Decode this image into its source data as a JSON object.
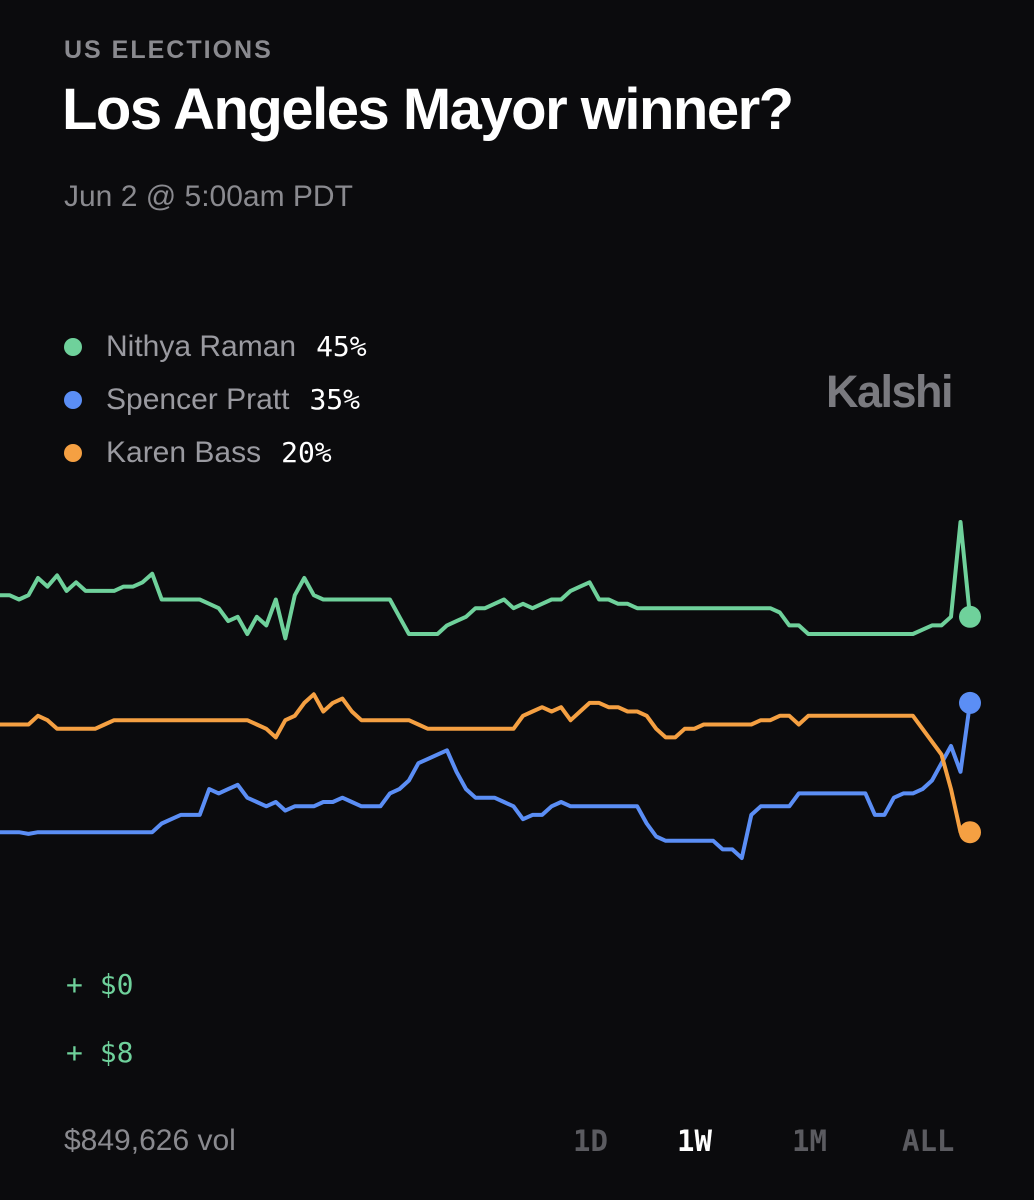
{
  "header": {
    "category": "US ELECTIONS",
    "title": "Los Angeles Mayor winner?",
    "date": "Jun 2 @ 5:00am PDT"
  },
  "brand": "Kalshi",
  "legend": [
    {
      "name": "Nithya Raman",
      "value": "45%",
      "color": "#6fd19b"
    },
    {
      "name": "Spencer Pratt",
      "value": "35%",
      "color": "#5b8ef5"
    },
    {
      "name": "Karen Bass",
      "value": "20%",
      "color": "#f5a042"
    }
  ],
  "pnl": {
    "top": "+ $0",
    "bottom": "+ $8"
  },
  "footer": {
    "volume": "$849,626 vol",
    "ranges": [
      "1D",
      "1W",
      "1M",
      "ALL"
    ],
    "active_range": "1W"
  },
  "chart_data": {
    "type": "line",
    "x": [
      0,
      1,
      2,
      3,
      4,
      5,
      6,
      7,
      8,
      9,
      10,
      11,
      12,
      13,
      14,
      15,
      16,
      17,
      18,
      19,
      20,
      21,
      22,
      23,
      24,
      25,
      26,
      27,
      28,
      29,
      30,
      31,
      32,
      33,
      34,
      35,
      36,
      37,
      38,
      39,
      40,
      41,
      42,
      43,
      44,
      45,
      46,
      47,
      48,
      49,
      50,
      51,
      52,
      53,
      54,
      55,
      56,
      57,
      58,
      59,
      60,
      61,
      62,
      63,
      64,
      65,
      66,
      67,
      68,
      69,
      70,
      71,
      72,
      73,
      74,
      75,
      76,
      77,
      78,
      79,
      80,
      81,
      82,
      83,
      84,
      85,
      86,
      87,
      88,
      89,
      90,
      91,
      92,
      93,
      94,
      95,
      96,
      97,
      98,
      99,
      100,
      101,
      102
    ],
    "ylim": [
      0,
      60
    ],
    "series": [
      {
        "name": "Nithya Raman",
        "color": "#6fd19b",
        "values": [
          47.5,
          47.5,
          47.0,
          47.5,
          49.5,
          48.5,
          49.8,
          48.0,
          49.0,
          48.0,
          48.0,
          48.0,
          48.0,
          48.5,
          48.5,
          49.0,
          50.0,
          47.0,
          47.0,
          47.0,
          47.0,
          47.0,
          46.5,
          46.0,
          44.5,
          45.0,
          43.0,
          45.0,
          44.0,
          47.0,
          42.5,
          47.5,
          49.5,
          47.5,
          47.0,
          47.0,
          47.0,
          47.0,
          47.0,
          47.0,
          47.0,
          47.0,
          45.0,
          43.0,
          43.0,
          43.0,
          43.0,
          44.0,
          44.5,
          45.0,
          46.0,
          46.0,
          46.5,
          47.0,
          46.0,
          46.5,
          46.0,
          46.5,
          47.0,
          47.0,
          48.0,
          48.5,
          49.0,
          47.0,
          47.0,
          46.5,
          46.5,
          46.0,
          46.0,
          46.0,
          46.0,
          46.0,
          46.0,
          46.0,
          46.0,
          46.0,
          46.0,
          46.0,
          46.0,
          46.0,
          46.0,
          46.0,
          45.5,
          44.0,
          44.0,
          43.0,
          43.0,
          43.0,
          43.0,
          43.0,
          43.0,
          43.0,
          43.0,
          43.0,
          43.0,
          43.0,
          43.0,
          43.5,
          44.0,
          44.0,
          45.0,
          56.0,
          45.0
        ]
      },
      {
        "name": "Spencer Pratt",
        "color": "#5b8ef5",
        "values": [
          20.0,
          20.0,
          20.0,
          19.8,
          20.0,
          20.0,
          20.0,
          20.0,
          20.0,
          20.0,
          20.0,
          20.0,
          20.0,
          20.0,
          20.0,
          20.0,
          20.0,
          21.0,
          21.5,
          22.0,
          22.0,
          22.0,
          25.0,
          24.5,
          25.0,
          25.5,
          24.0,
          23.5,
          23.0,
          23.5,
          22.5,
          23.0,
          23.0,
          23.0,
          23.5,
          23.5,
          24.0,
          23.5,
          23.0,
          23.0,
          23.0,
          24.5,
          25.0,
          26.0,
          28.0,
          28.5,
          29.0,
          29.5,
          27.0,
          25.0,
          24.0,
          24.0,
          24.0,
          23.5,
          23.0,
          21.5,
          22.0,
          22.0,
          23.0,
          23.5,
          23.0,
          23.0,
          23.0,
          23.0,
          23.0,
          23.0,
          23.0,
          23.0,
          21.0,
          19.5,
          19.0,
          19.0,
          19.0,
          19.0,
          19.0,
          19.0,
          18.0,
          18.0,
          17.0,
          22.0,
          23.0,
          23.0,
          23.0,
          23.0,
          24.5,
          24.5,
          24.5,
          24.5,
          24.5,
          24.5,
          24.5,
          24.5,
          22.0,
          22.0,
          24.0,
          24.5,
          24.5,
          25.0,
          26.0,
          28.0,
          30.0,
          27.0,
          35.0
        ]
      },
      {
        "name": "Karen Bass",
        "color": "#f5a042",
        "values": [
          32.5,
          32.5,
          32.5,
          32.5,
          33.5,
          33.0,
          32.0,
          32.0,
          32.0,
          32.0,
          32.0,
          32.5,
          33.0,
          33.0,
          33.0,
          33.0,
          33.0,
          33.0,
          33.0,
          33.0,
          33.0,
          33.0,
          33.0,
          33.0,
          33.0,
          33.0,
          33.0,
          32.5,
          32.0,
          31.0,
          33.0,
          33.5,
          35.0,
          36.0,
          34.0,
          35.0,
          35.5,
          34.0,
          33.0,
          33.0,
          33.0,
          33.0,
          33.0,
          33.0,
          32.5,
          32.0,
          32.0,
          32.0,
          32.0,
          32.0,
          32.0,
          32.0,
          32.0,
          32.0,
          32.0,
          33.5,
          34.0,
          34.5,
          34.0,
          34.5,
          33.0,
          34.0,
          35.0,
          35.0,
          34.5,
          34.5,
          34.0,
          34.0,
          33.5,
          32.0,
          31.0,
          31.0,
          32.0,
          32.0,
          32.5,
          32.5,
          32.5,
          32.5,
          32.5,
          32.5,
          33.0,
          33.0,
          33.5,
          33.5,
          32.5,
          33.5,
          33.5,
          33.5,
          33.5,
          33.5,
          33.5,
          33.5,
          33.5,
          33.5,
          33.5,
          33.5,
          33.5,
          32.0,
          30.5,
          29.0,
          25.0,
          20.0,
          20.0
        ]
      }
    ]
  }
}
